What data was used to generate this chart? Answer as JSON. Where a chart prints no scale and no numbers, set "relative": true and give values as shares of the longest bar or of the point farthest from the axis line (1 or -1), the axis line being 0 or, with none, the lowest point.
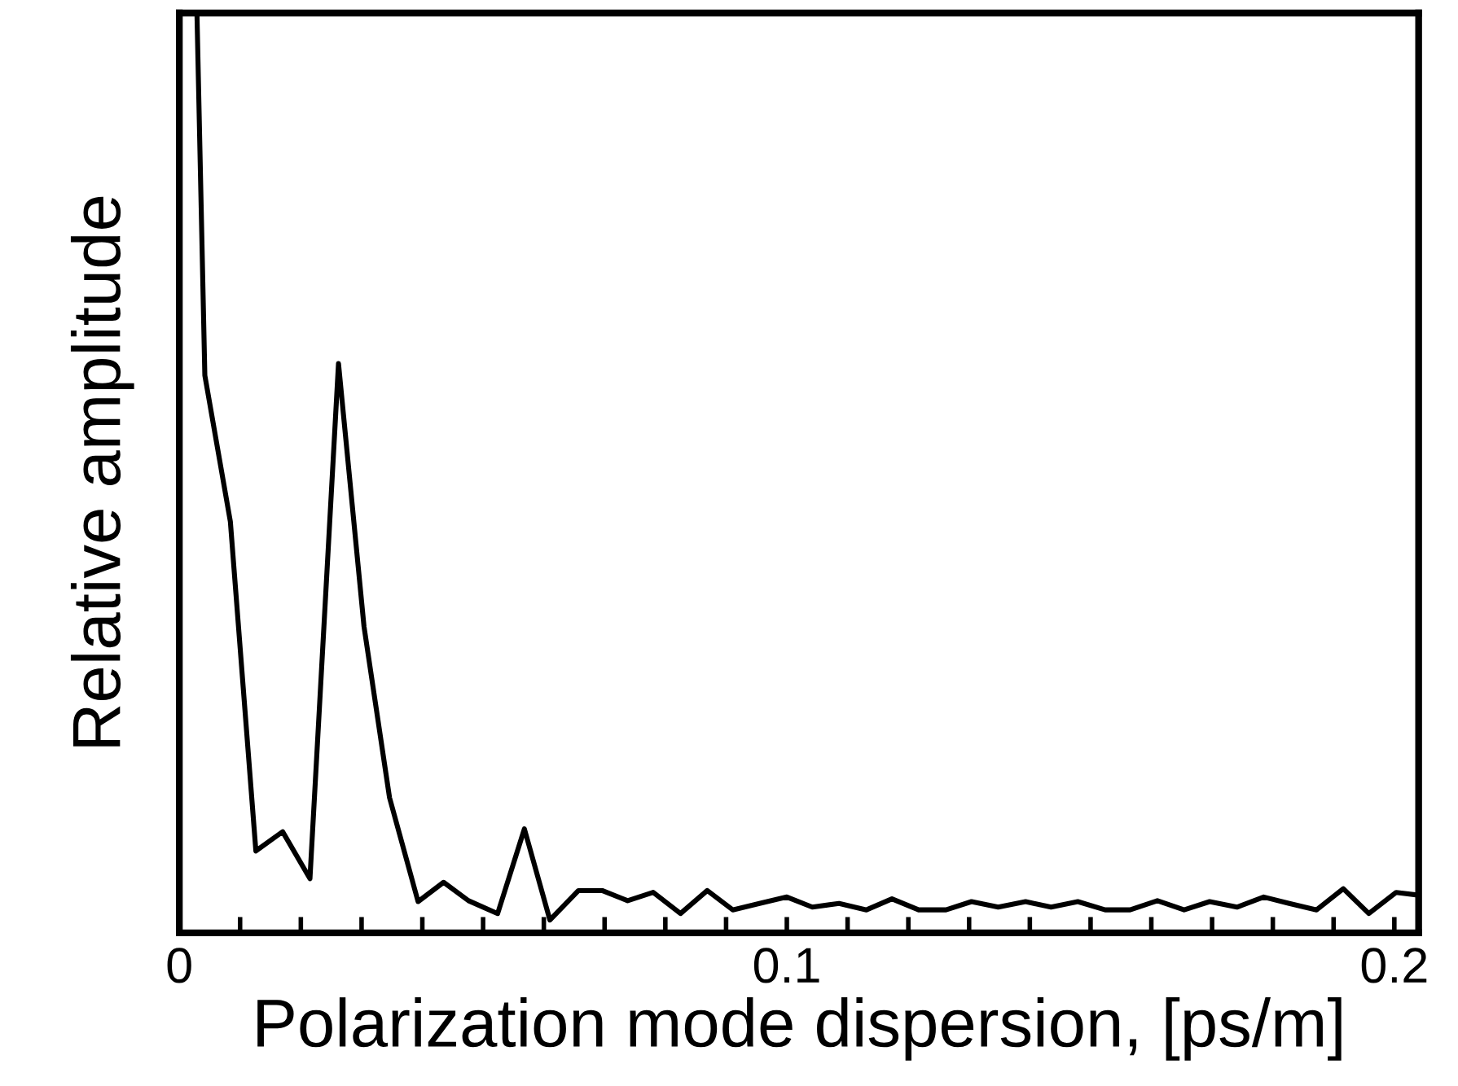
{
  "chart_data": {
    "type": "line",
    "xlabel": "Polarization mode dispersion, [ps/m]",
    "ylabel": "Relative amplitude",
    "relative": true,
    "color": "#000000",
    "marker": "none",
    "line_style": "solid",
    "grid": false,
    "x": [
      0.0029,
      0.0042,
      0.0084,
      0.0126,
      0.017,
      0.0215,
      0.0262,
      0.0304,
      0.0346,
      0.0393,
      0.0435,
      0.0476,
      0.0524,
      0.0568,
      0.061,
      0.0657,
      0.0696,
      0.0738,
      0.078,
      0.0825,
      0.0869,
      0.0911,
      0.0955,
      0.1,
      0.1042,
      0.1086,
      0.1131,
      0.1173,
      0.1217,
      0.1262,
      0.1304,
      0.1348,
      0.1393,
      0.1435,
      0.1479,
      0.1524,
      0.1565,
      0.161,
      0.1654,
      0.1696,
      0.1741,
      0.1785,
      0.1827,
      0.1872,
      0.1916,
      0.1958,
      0.2003,
      0.204
    ],
    "values": [
      1.0,
      0.606,
      0.447,
      0.089,
      0.11,
      0.059,
      0.619,
      0.333,
      0.147,
      0.034,
      0.055,
      0.035,
      0.021,
      0.113,
      0.014,
      0.046,
      0.046,
      0.035,
      0.044,
      0.021,
      0.046,
      0.025,
      0.032,
      0.039,
      0.028,
      0.032,
      0.025,
      0.037,
      0.025,
      0.025,
      0.034,
      0.028,
      0.034,
      0.028,
      0.034,
      0.025,
      0.025,
      0.035,
      0.025,
      0.034,
      0.028,
      0.039,
      0.032,
      0.025,
      0.048,
      0.021,
      0.044,
      0.041
    ],
    "xlim": [
      0,
      0.204
    ],
    "xticks": [
      0,
      {
        "value": 0.01,
        "label": null
      },
      {
        "value": 0.02,
        "label": null
      },
      {
        "value": 0.03,
        "label": null
      },
      {
        "value": 0.04,
        "label": null
      },
      {
        "value": 0.05,
        "label": null
      },
      {
        "value": 0.06,
        "label": null
      },
      {
        "value": 0.07,
        "label": null
      },
      {
        "value": 0.08,
        "label": null
      },
      {
        "value": 0.09,
        "label": null
      },
      0.1,
      {
        "value": 0.11,
        "label": null
      },
      {
        "value": 0.12,
        "label": null
      },
      {
        "value": 0.13,
        "label": null
      },
      {
        "value": 0.14,
        "label": null
      },
      {
        "value": 0.15,
        "label": null
      },
      {
        "value": 0.16,
        "label": null
      },
      {
        "value": 0.17,
        "label": null
      },
      {
        "value": 0.18,
        "label": null
      },
      {
        "value": 0.19,
        "label": null
      },
      0.2
    ]
  }
}
